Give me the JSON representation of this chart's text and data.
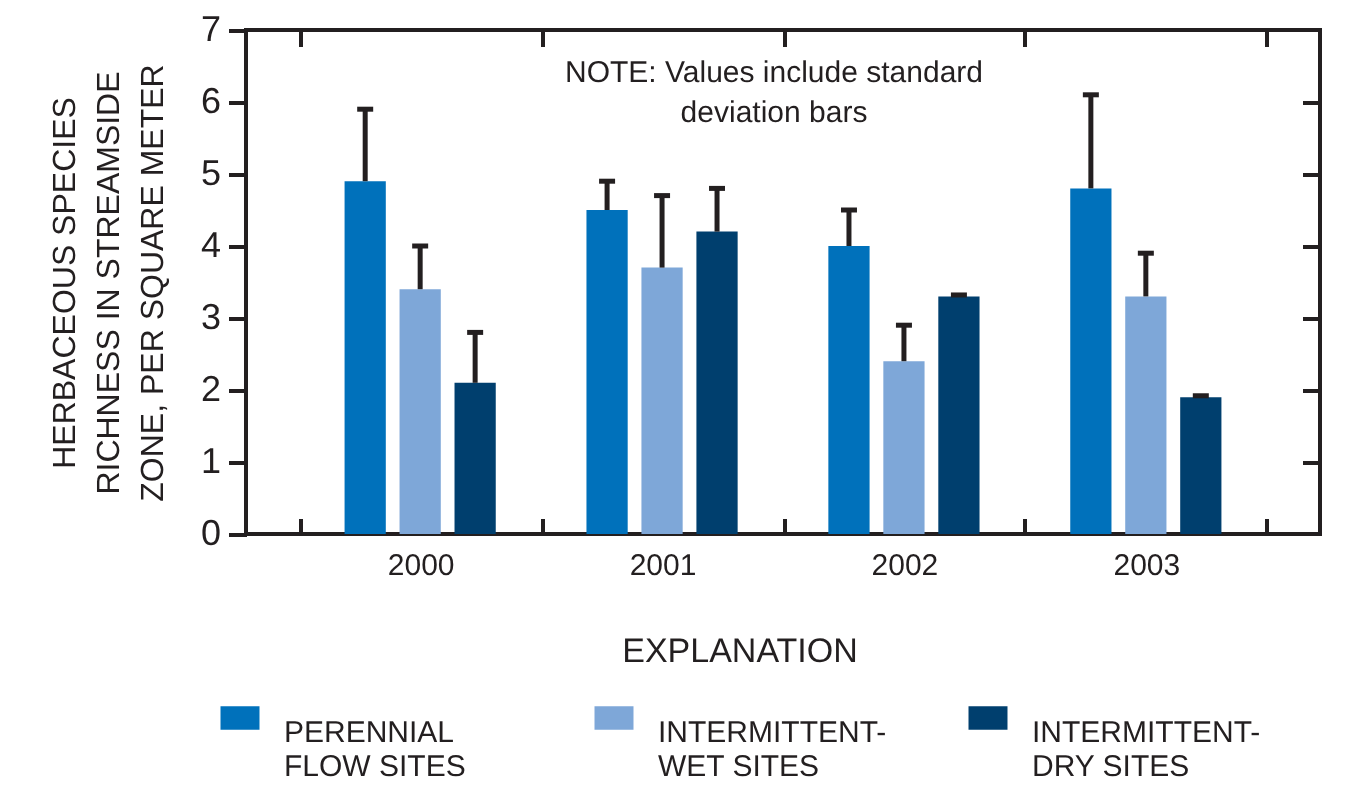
{
  "chart_data": {
    "type": "bar",
    "categories": [
      "2000",
      "2001",
      "2002",
      "2003"
    ],
    "series": [
      {
        "name": "PERENNIAL\nFLOW SITES",
        "color": "#0071bb",
        "values": [
          4.9,
          4.5,
          4.0,
          4.8
        ],
        "errors": [
          [
            4.9,
            5.9
          ],
          [
            4.5,
            4.9
          ],
          [
            4.0,
            4.5
          ],
          [
            4.8,
            6.1
          ]
        ]
      },
      {
        "name": "INTERMITTENT-\nWET SITES",
        "color": "#7ea7d8",
        "values": [
          3.4,
          3.7,
          2.4,
          3.3
        ],
        "errors": [
          [
            3.4,
            4.0
          ],
          [
            3.7,
            4.7
          ],
          [
            2.4,
            2.9
          ],
          [
            3.3,
            3.9
          ]
        ]
      },
      {
        "name": "INTERMITTENT-\nDRY SITES",
        "color": "#003f6e",
        "values": [
          2.1,
          4.2,
          3.3,
          1.9
        ],
        "errors": [
          [
            2.1,
            2.8
          ],
          [
            4.2,
            4.8
          ],
          [
            3.3,
            3.32
          ],
          [
            1.9,
            1.92
          ]
        ]
      }
    ],
    "ylabel": "HERBACEOUS SPECIES\nRICHNESS IN STREAMSIDE\nZONE, PER SQUARE METER",
    "ylim": [
      0,
      7
    ],
    "yticks": [
      0,
      1,
      2,
      3,
      4,
      5,
      6,
      7
    ],
    "annotations": [
      "NOTE: Values include standard\ndeviation bars"
    ],
    "legend": "bottom",
    "legend_title": "EXPLANATION",
    "grid": false
  }
}
